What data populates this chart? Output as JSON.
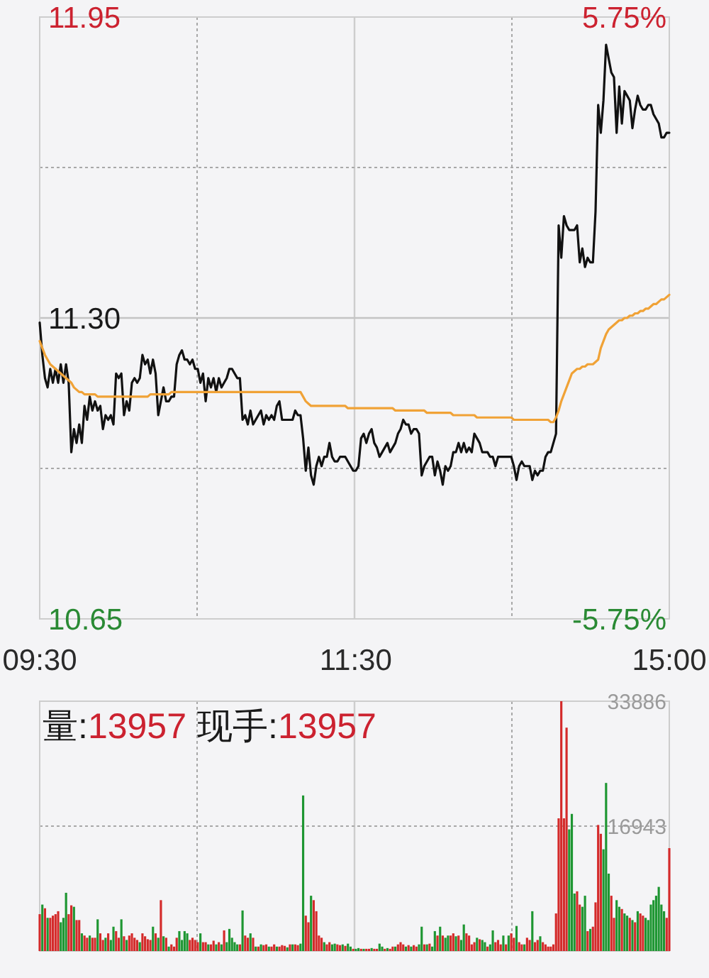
{
  "chart_data": [
    {
      "type": "line",
      "categories": [
        "09:30",
        null,
        null,
        null,
        null,
        null,
        null,
        null,
        null,
        null,
        null,
        null,
        null,
        null,
        null,
        null,
        null,
        null,
        null,
        null,
        null,
        null,
        null,
        null,
        null,
        null,
        null,
        null,
        null,
        null,
        null,
        null,
        null,
        null,
        null,
        null,
        null,
        null,
        null,
        null,
        null,
        null,
        null,
        null,
        null,
        null,
        null,
        null,
        null,
        null,
        null,
        null,
        null,
        null,
        null,
        null,
        null,
        null,
        null,
        null,
        null,
        null,
        null,
        null,
        null,
        null,
        null,
        null,
        null,
        null,
        null,
        null,
        null,
        null,
        null,
        null,
        null,
        null,
        null,
        null,
        null,
        null,
        null,
        null,
        null,
        null,
        null,
        null,
        null,
        null,
        null,
        null,
        null,
        null,
        null,
        null,
        null,
        null,
        null,
        null,
        null,
        null,
        null,
        null,
        null,
        null,
        null,
        null,
        null,
        null,
        null,
        null,
        null,
        null,
        null,
        null,
        null,
        null,
        null,
        null,
        "11:30",
        null,
        null,
        null,
        null,
        null,
        null,
        null,
        null,
        null,
        null,
        null,
        null,
        null,
        null,
        null,
        null,
        null,
        null,
        null,
        null,
        null,
        null,
        null,
        null,
        null,
        null,
        null,
        null,
        null,
        null,
        null,
        null,
        null,
        null,
        null,
        null,
        null,
        null,
        null,
        null,
        null,
        null,
        null,
        null,
        null,
        null,
        null,
        null,
        null,
        null,
        null,
        null,
        null,
        null,
        null,
        null,
        null,
        null,
        null,
        null,
        null,
        null,
        null,
        null,
        null,
        null,
        null,
        null,
        null,
        null,
        null,
        null,
        null,
        null,
        null,
        null,
        null,
        null,
        null,
        null,
        null,
        null,
        null,
        null,
        null,
        null,
        null,
        null,
        null,
        null,
        null,
        null,
        null,
        null,
        null,
        null,
        null,
        null,
        null,
        null,
        null,
        null,
        null,
        null,
        null,
        null,
        null,
        null,
        null,
        null,
        null,
        null,
        null,
        null,
        null,
        null,
        null,
        null,
        "15:00"
      ],
      "ylim": [
        10.65,
        11.95
      ],
      "yticks": [
        {
          "value": 10.65,
          "label": "10.65"
        },
        {
          "value": 10.975,
          "label": null
        },
        {
          "value": 11.3,
          "label": "11.30"
        },
        {
          "value": 11.625,
          "label": null
        },
        {
          "value": 11.95,
          "label": "11.95"
        }
      ],
      "y2lim": [
        -5.75,
        5.75
      ],
      "y2ticks": [
        {
          "value": -5.75,
          "label": "-5.75%"
        },
        {
          "value": 5.75,
          "label": "5.75%"
        }
      ],
      "grid": true,
      "ref_lines": [
        {
          "axis": "y",
          "value": 11.3,
          "color": "#c4c4c4",
          "line_style": "solid"
        }
      ],
      "series": [
        {
          "color": "#111111",
          "values": [
            11.29,
            11.22,
            11.17,
            11.15,
            11.19,
            11.16,
            11.19,
            11.16,
            11.2,
            11.16,
            11.2,
            11.16,
            11.01,
            11.06,
            11.03,
            11.07,
            11.03,
            11.11,
            11.08,
            11.13,
            11.1,
            11.12,
            11.1,
            11.11,
            11.06,
            11.09,
            11.08,
            11.09,
            11.07,
            11.18,
            11.17,
            11.18,
            11.09,
            11.12,
            11.1,
            11.16,
            11.17,
            11.16,
            11.17,
            11.22,
            11.2,
            11.21,
            11.18,
            11.21,
            11.18,
            11.09,
            11.12,
            11.15,
            11.12,
            11.12,
            11.13,
            11.13,
            11.2,
            11.22,
            11.23,
            11.21,
            11.21,
            11.2,
            11.21,
            11.19,
            11.19,
            11.16,
            11.18,
            11.12,
            11.17,
            11.15,
            11.17,
            11.14,
            11.17,
            11.15,
            11.16,
            11.17,
            11.19,
            11.19,
            11.18,
            11.17,
            11.17,
            11.08,
            11.09,
            11.07,
            11.1,
            11.07,
            11.08,
            11.09,
            11.1,
            11.07,
            11.09,
            11.08,
            11.09,
            11.08,
            11.11,
            11.12,
            11.08,
            11.08,
            11.08,
            11.08,
            11.08,
            11.1,
            11.09,
            11.09,
            11.04,
            10.97,
            11.02,
            10.96,
            10.94,
            10.98,
            11.0,
            10.98,
            11.0,
            11.0,
            11.03,
            11.0,
            10.99,
            10.99,
            11.0,
            11.0,
            11.0,
            10.99,
            10.98,
            10.97,
            10.97,
            10.98,
            11.04,
            11.05,
            11.03,
            11.05,
            11.06,
            11.03,
            11.02,
            11.0,
            11.01,
            11.02,
            11.03,
            11.01,
            11.02,
            11.03,
            11.05,
            11.06,
            11.08,
            11.07,
            11.07,
            11.05,
            11.06,
            11.06,
            11.05,
            10.96,
            10.98,
            10.99,
            11.0,
            11.0,
            10.96,
            10.99,
            10.97,
            10.94,
            10.98,
            10.97,
            10.98,
            11.01,
            11.01,
            11.03,
            11.01,
            11.03,
            11.01,
            11.02,
            11.01,
            11.05,
            11.04,
            11.03,
            11.01,
            11.01,
            11.01,
            11.0,
            11.0,
            10.98,
            11.0,
            11.0,
            11.0,
            11.0,
            11.0,
            11.0,
            10.98,
            10.95,
            10.98,
            10.99,
            10.98,
            10.98,
            10.98,
            10.95,
            10.97,
            10.96,
            10.97,
            10.97,
            11.0,
            11.01,
            11.01,
            11.03,
            11.05,
            11.5,
            11.43,
            11.52,
            11.5,
            11.49,
            11.49,
            11.49,
            11.5,
            11.42,
            11.45,
            11.41,
            11.43,
            11.42,
            11.42,
            11.53,
            11.76,
            11.7,
            11.77,
            11.89,
            11.86,
            11.83,
            11.82,
            11.7,
            11.8,
            11.72,
            11.79,
            11.78,
            11.77,
            11.71,
            11.75,
            11.78,
            11.76,
            11.75,
            11.75,
            11.76,
            11.76,
            11.74,
            11.73,
            11.72,
            11.69,
            11.69,
            11.7,
            11.7
          ]
        },
        {
          "color": "#f0a236",
          "values": [
            11.25,
            11.235,
            11.22,
            11.21,
            11.2,
            11.195,
            11.19,
            11.185,
            11.18,
            11.175,
            11.17,
            11.165,
            11.16,
            11.15,
            11.145,
            11.14,
            11.14,
            11.135,
            11.135,
            11.135,
            11.135,
            11.135,
            11.13,
            11.13,
            11.13,
            11.13,
            11.13,
            11.13,
            11.13,
            11.13,
            11.13,
            11.13,
            11.13,
            11.13,
            11.13,
            11.13,
            11.13,
            11.13,
            11.13,
            11.13,
            11.13,
            11.13,
            11.135,
            11.135,
            11.135,
            11.135,
            11.135,
            11.135,
            11.135,
            11.135,
            11.14,
            11.14,
            11.14,
            11.14,
            11.14,
            11.14,
            11.14,
            11.14,
            11.14,
            11.14,
            11.14,
            11.14,
            11.14,
            11.14,
            11.14,
            11.14,
            11.14,
            11.14,
            11.14,
            11.14,
            11.14,
            11.14,
            11.14,
            11.14,
            11.14,
            11.14,
            11.14,
            11.14,
            11.14,
            11.14,
            11.14,
            11.14,
            11.14,
            11.14,
            11.14,
            11.14,
            11.14,
            11.14,
            11.14,
            11.14,
            11.14,
            11.14,
            11.14,
            11.14,
            11.14,
            11.14,
            11.14,
            11.14,
            11.14,
            11.14,
            11.13,
            11.12,
            11.115,
            11.11,
            11.11,
            11.11,
            11.11,
            11.11,
            11.11,
            11.11,
            11.11,
            11.11,
            11.11,
            11.11,
            11.11,
            11.11,
            11.11,
            11.105,
            11.105,
            11.105,
            11.105,
            11.105,
            11.105,
            11.105,
            11.105,
            11.105,
            11.105,
            11.105,
            11.105,
            11.105,
            11.105,
            11.105,
            11.105,
            11.105,
            11.105,
            11.1,
            11.1,
            11.1,
            11.1,
            11.1,
            11.1,
            11.1,
            11.1,
            11.1,
            11.1,
            11.1,
            11.1,
            11.095,
            11.095,
            11.095,
            11.095,
            11.095,
            11.095,
            11.095,
            11.095,
            11.095,
            11.095,
            11.09,
            11.09,
            11.09,
            11.09,
            11.09,
            11.09,
            11.09,
            11.09,
            11.09,
            11.085,
            11.085,
            11.085,
            11.085,
            11.085,
            11.085,
            11.085,
            11.085,
            11.085,
            11.085,
            11.085,
            11.085,
            11.085,
            11.085,
            11.08,
            11.08,
            11.08,
            11.08,
            11.08,
            11.08,
            11.08,
            11.08,
            11.08,
            11.08,
            11.08,
            11.08,
            11.08,
            11.08,
            11.075,
            11.075,
            11.085,
            11.1,
            11.12,
            11.135,
            11.15,
            11.165,
            11.18,
            11.185,
            11.19,
            11.19,
            11.195,
            11.195,
            11.2,
            11.2,
            11.2,
            11.205,
            11.21,
            11.235,
            11.25,
            11.265,
            11.275,
            11.28,
            11.285,
            11.29,
            11.295,
            11.295,
            11.3,
            11.3,
            11.305,
            11.305,
            11.31,
            11.31,
            11.315,
            11.315,
            11.32,
            11.32,
            11.325,
            11.33,
            11.33,
            11.335,
            11.34,
            11.34,
            11.345,
            11.35
          ]
        }
      ]
    },
    {
      "type": "bar",
      "categories": [
        null,
        null,
        null,
        null,
        null,
        null,
        null,
        null,
        null,
        null,
        null,
        null,
        null,
        null,
        null,
        null,
        null,
        null,
        null,
        null,
        null,
        null,
        null,
        null,
        null,
        null,
        null,
        null,
        null,
        null,
        null,
        null,
        null,
        null,
        null,
        null,
        null,
        null,
        null,
        null,
        null,
        null,
        null,
        null,
        null,
        null,
        null,
        null,
        null,
        null,
        null,
        null,
        null,
        null,
        null,
        null,
        null,
        null,
        null,
        null,
        null,
        null,
        null,
        null,
        null,
        null,
        null,
        null,
        null,
        null,
        null,
        null,
        null,
        null,
        null,
        null,
        null,
        null,
        null,
        null,
        null,
        null,
        null,
        null,
        null,
        null,
        null,
        null,
        null,
        null,
        null,
        null,
        null,
        null,
        null,
        null,
        null,
        null,
        null,
        null,
        null,
        null,
        null,
        null,
        null,
        null,
        null,
        null,
        null,
        null,
        null,
        null,
        null,
        null,
        null,
        null,
        null,
        null,
        null,
        null,
        null,
        null,
        null,
        null,
        null,
        null,
        null,
        null,
        null,
        null,
        null,
        null,
        null,
        null,
        null,
        null,
        null,
        null,
        null,
        null,
        null,
        null,
        null,
        null,
        null,
        null,
        null,
        null,
        null,
        null,
        null,
        null,
        null,
        null,
        null,
        null,
        null,
        null,
        null,
        null,
        null,
        null,
        null,
        null,
        null,
        null,
        null,
        null,
        null,
        null,
        null,
        null,
        null,
        null,
        null,
        null,
        null,
        null,
        null,
        null,
        null,
        null,
        null,
        null,
        null,
        null,
        null,
        null,
        null,
        null,
        null,
        null,
        null,
        null,
        null,
        null,
        null,
        null,
        null,
        null,
        null,
        null,
        null,
        null,
        null,
        null,
        null,
        null,
        null,
        null,
        null,
        null,
        null,
        null,
        null,
        null,
        null,
        null,
        null,
        null,
        null,
        null,
        null,
        null,
        null,
        null,
        null,
        null,
        null,
        null,
        null,
        null,
        null,
        null,
        null,
        null,
        null,
        null,
        null,
        null
      ],
      "ylim": [
        0,
        33886
      ],
      "yticks": [
        16943,
        33886
      ],
      "tick_labels": "y",
      "grid": true,
      "annotations": [
        "量:",
        "13957",
        "现手:",
        "13957"
      ],
      "series": [
        {
          "values": [
            5000,
            6300,
            5800,
            4500,
            4500,
            4800,
            5000,
            5400,
            3900,
            4500,
            7900,
            5000,
            6200,
            6000,
            4200,
            4200,
            2400,
            2100,
            1800,
            2100,
            1800,
            1800,
            4300,
            2400,
            1500,
            1800,
            2400,
            1500,
            3300,
            2700,
            1800,
            4300,
            2000,
            1500,
            2100,
            2400,
            1800,
            1500,
            1200,
            2400,
            2000,
            1600,
            1500,
            3300,
            2400,
            1800,
            6900,
            2000,
            1800,
            600,
            900,
            600,
            1800,
            2700,
            1500,
            2700,
            2400,
            1500,
            1800,
            1500,
            1200,
            2400,
            1200,
            1200,
            900,
            900,
            1400,
            900,
            1200,
            900,
            2800,
            1200,
            3000,
            1800,
            1200,
            900,
            900,
            5500,
            2100,
            1800,
            2400,
            1800,
            600,
            600,
            900,
            800,
            900,
            600,
            600,
            900,
            600,
            600,
            800,
            700,
            500,
            900,
            900,
            900,
            800,
            1000,
            21100,
            4800,
            3900,
            7500,
            6900,
            5400,
            2100,
            1800,
            1200,
            900,
            1200,
            900,
            1000,
            900,
            800,
            900,
            700,
            1000,
            600,
            300,
            300,
            400,
            300,
            300,
            300,
            300,
            400,
            300,
            300,
            1000,
            600,
            300,
            400,
            300,
            600,
            600,
            900,
            1200,
            900,
            600,
            800,
            600,
            800,
            600,
            900,
            3300,
            900,
            900,
            1000,
            600,
            2700,
            2100,
            3300,
            2100,
            1800,
            2100,
            2100,
            2400,
            2000,
            2100,
            1500,
            3600,
            2400,
            2100,
            900,
            1200,
            1800,
            1600,
            1500,
            1200,
            600,
            900,
            2800,
            1200,
            1500,
            900,
            2100,
            900,
            2100,
            2400,
            1800,
            3400,
            1200,
            900,
            900,
            1800,
            1500,
            5400,
            1200,
            1500,
            2000,
            1200,
            900,
            600,
            600,
            900,
            5100,
            18000,
            33886,
            18000,
            30300,
            16500,
            18600,
            7800,
            8100,
            6300,
            6000,
            7500,
            2700,
            3000,
            3300,
            6600,
            17100,
            15900,
            13800,
            22800,
            10500,
            7500,
            4500,
            6900,
            6000,
            5700,
            5100,
            4800,
            4500,
            4200,
            3900,
            5400,
            5100,
            4800,
            4500,
            4200,
            6300,
            6900,
            7500,
            8700,
            6300,
            5400,
            4500,
            13957
          ],
          "colors": [
            "#d42a2a",
            "#1e9632",
            "#d42a2a",
            "#1e9632",
            "#d42a2a",
            "#d42a2a",
            "#d42a2a",
            "#d42a2a",
            "#1e9632",
            "#1e9632",
            "#1e9632",
            "#d42a2a",
            "#d42a2a",
            "#1e9632",
            "#d42a2a",
            "#d42a2a",
            "#1e9632",
            "#d42a2a",
            "#d42a2a",
            "#1e9632",
            "#d42a2a",
            "#d42a2a",
            "#1e9632",
            "#d42a2a",
            "#d42a2a",
            "#1e9632",
            "#d42a2a",
            "#1e9632",
            "#1e9632",
            "#d42a2a",
            "#d42a2a",
            "#1e9632",
            "#d42a2a",
            "#1e9632",
            "#d42a2a",
            "#d42a2a",
            "#d42a2a",
            "#d42a2a",
            "#1e9632",
            "#d42a2a",
            "#d42a2a",
            "#d42a2a",
            "#d42a2a",
            "#1e9632",
            "#d42a2a",
            "#1e9632",
            "#d42a2a",
            "#1e9632",
            "#d42a2a",
            "#1e9632",
            "#d42a2a",
            "#d42a2a",
            "#d42a2a",
            "#1e9632",
            "#1e9632",
            "#1e9632",
            "#1e9632",
            "#d42a2a",
            "#d42a2a",
            "#d42a2a",
            "#d42a2a",
            "#1e9632",
            "#d42a2a",
            "#d42a2a",
            "#1e9632",
            "#d42a2a",
            "#d42a2a",
            "#1e9632",
            "#d42a2a",
            "#1e9632",
            "#d42a2a",
            "#1e9632",
            "#1e9632",
            "#1e9632",
            "#1e9632",
            "#1e9632",
            "#d42a2a",
            "#1e9632",
            "#d42a2a",
            "#d42a2a",
            "#1e9632",
            "#d42a2a",
            "#1e9632",
            "#d42a2a",
            "#1e9632",
            "#d42a2a",
            "#d42a2a",
            "#1e9632",
            "#d42a2a",
            "#d42a2a",
            "#1e9632",
            "#d42a2a",
            "#d42a2a",
            "#d42a2a",
            "#1e9632",
            "#d42a2a",
            "#1e9632",
            "#d42a2a",
            "#d42a2a",
            "#1e9632",
            "#1e9632",
            "#d42a2a",
            "#d42a2a",
            "#1e9632",
            "#d42a2a",
            "#d42a2a",
            "#d42a2a",
            "#d42a2a",
            "#1e9632",
            "#d42a2a",
            "#d42a2a",
            "#1e9632",
            "#1e9632",
            "#d42a2a",
            "#d42a2a",
            "#1e9632",
            "#d42a2a",
            "#1e9632",
            "#1e9632",
            "#d42a2a",
            "#1e9632",
            "#1e9632",
            "#d42a2a",
            "#1e9632",
            "#d42a2a",
            "#d42a2a",
            "#1e9632",
            "#d42a2a",
            "#d42a2a",
            "#1e9632",
            "#1e9632",
            "#d42a2a",
            "#1e9632",
            "#d42a2a",
            "#d42a2a",
            "#1e9632",
            "#d42a2a",
            "#d42a2a",
            "#d42a2a",
            "#1e9632",
            "#d42a2a",
            "#1e9632",
            "#d42a2a",
            "#d42a2a",
            "#1e9632",
            "#1e9632",
            "#d42a2a",
            "#1e9632",
            "#d42a2a",
            "#1e9632",
            "#1e9632",
            "#d42a2a",
            "#1e9632",
            "#d42a2a",
            "#1e9632",
            "#1e9632",
            "#d42a2a",
            "#d42a2a",
            "#1e9632",
            "#d42a2a",
            "#1e9632",
            "#1e9632",
            "#d42a2a",
            "#d42a2a",
            "#d42a2a",
            "#d42a2a",
            "#1e9632",
            "#d42a2a",
            "#1e9632",
            "#1e9632",
            "#d42a2a",
            "#1e9632",
            "#1e9632",
            "#d42a2a",
            "#d42a2a",
            "#d42a2a",
            "#1e9632",
            "#d42a2a",
            "#1e9632",
            "#d42a2a",
            "#d42a2a",
            "#1e9632",
            "#d42a2a",
            "#d42a2a",
            "#1e9632",
            "#d42a2a",
            "#d42a2a",
            "#1e9632",
            "#d42a2a",
            "#d42a2a",
            "#1e9632",
            "#d42a2a",
            "#d42a2a",
            "#d42a2a",
            "#d42a2a",
            "#d42a2a",
            "#d42a2a",
            "#d42a2a",
            "#d42a2a",
            "#d42a2a",
            "#d42a2a",
            "#1e9632",
            "#1e9632",
            "#1e9632",
            "#d42a2a",
            "#d42a2a",
            "#1e9632",
            "#1e9632",
            "#d42a2a",
            "#1e9632",
            "#d42a2a",
            "#d42a2a",
            "#d42a2a",
            "#d42a2a",
            "#1e9632",
            "#1e9632",
            "#1e9632",
            "#d42a2a",
            "#d42a2a",
            "#1e9632",
            "#1e9632",
            "#d42a2a",
            "#1e9632",
            "#1e9632",
            "#d42a2a",
            "#1e9632",
            "#d42a2a",
            "#1e9632",
            "#d42a2a",
            "#d42a2a",
            "#1e9632",
            "#1e9632",
            "#1e9632",
            "#1e9632",
            "#1e9632",
            "#1e9632",
            "#1e9632",
            "#1e9632",
            "#d42a2a",
            "#d42a2a"
          ]
        }
      ]
    }
  ]
}
